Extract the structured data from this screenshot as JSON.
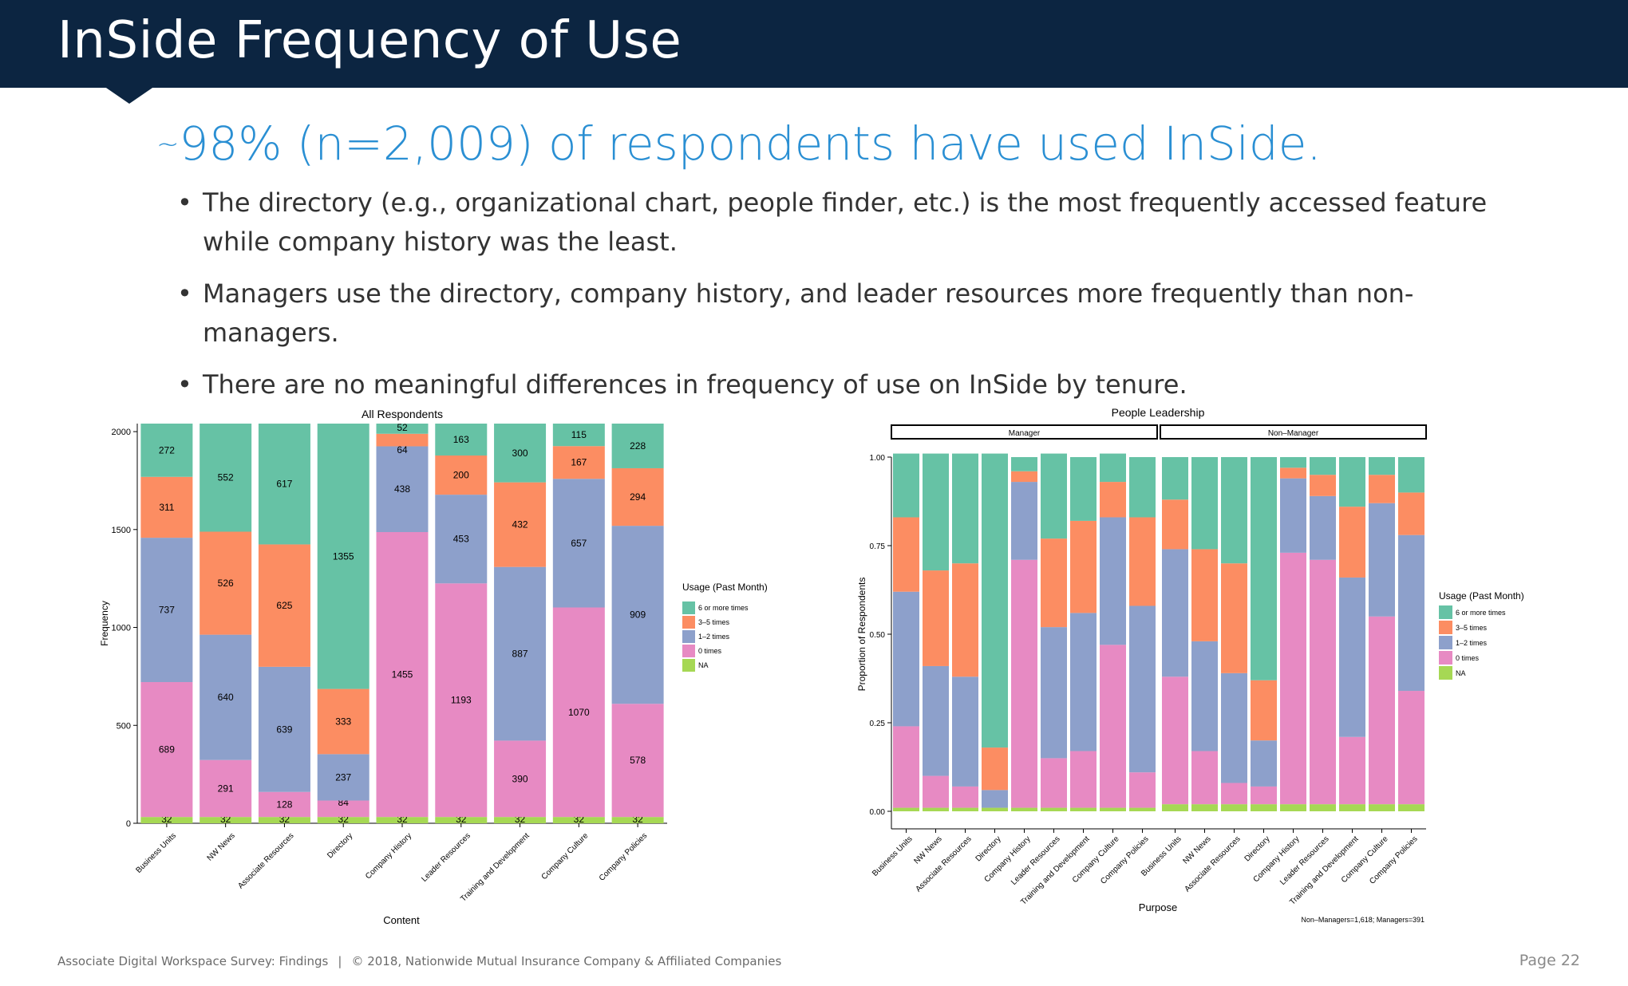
{
  "slide": {
    "title": "InSide Frequency of Use",
    "subtitle_prefix": "~",
    "subtitle": "98% (n=2,009) of respondents have used InSide.",
    "bullets": [
      "The directory (e.g., organizational chart, people finder, etc.) is the most frequently accessed feature while company history was the least.",
      "Managers use the directory, company history, and leader resources more frequently than non-managers.",
      "There are no meaningful differences in frequency of use on InSide by tenure."
    ],
    "footer": "Associate Digital Workspace Survey: Findings",
    "footer_sep": "|",
    "copyright": "© 2018, Nationwide Mutual Insurance Company & Affiliated Companies",
    "page": "Page 22"
  },
  "colors": {
    "six_plus": "#66c2a5",
    "three_five": "#fc8d62",
    "one_two": "#8da0cb",
    "zero": "#e78ac3",
    "na": "#a6d854",
    "header_bg": "#0c2541",
    "subtitle": "#2a8fd3"
  },
  "chart_data": [
    {
      "type": "bar",
      "stacked": true,
      "title": "All Respondents",
      "xlabel": "Content",
      "ylabel": "Frequency",
      "ylim": [
        0,
        2041
      ],
      "yticks": [
        0,
        500,
        1000,
        1500,
        2000
      ],
      "categories": [
        "Business Units",
        "NW News",
        "Associate Resources",
        "Directory",
        "Company History",
        "Leader Resources",
        "Training and Development",
        "Company Culture",
        "Company Policies"
      ],
      "legend_title": "Usage (Past Month)",
      "legend_position": "right",
      "series": [
        {
          "name": "NA",
          "key": "na",
          "values": [
            32,
            32,
            32,
            32,
            32,
            32,
            32,
            32,
            32
          ]
        },
        {
          "name": "0 times",
          "key": "zero",
          "values": [
            689,
            291,
            128,
            84,
            1455,
            1193,
            390,
            1070,
            578
          ]
        },
        {
          "name": "1–2 times",
          "key": "one_two",
          "values": [
            737,
            640,
            639,
            237,
            438,
            453,
            887,
            657,
            909
          ]
        },
        {
          "name": "3–5 times",
          "key": "three_five",
          "values": [
            311,
            526,
            625,
            333,
            64,
            200,
            432,
            167,
            294
          ]
        },
        {
          "name": "6 or more times",
          "key": "six_plus",
          "values": [
            272,
            552,
            617,
            1355,
            52,
            163,
            300,
            115,
            228
          ]
        }
      ]
    },
    {
      "type": "bar",
      "stacked": true,
      "title": "People Leadership",
      "xlabel": "Purpose",
      "ylabel": "Proportion of Respondents",
      "ylim": [
        0,
        1
      ],
      "yticks": [
        "0.00",
        "0.25",
        "0.50",
        "0.75",
        "1.00"
      ],
      "facets": [
        "Manager",
        "Non–Manager"
      ],
      "categories": [
        "Business Units",
        "NW News",
        "Associate Resources",
        "Directory",
        "Company History",
        "Leader Resources",
        "Training and Development",
        "Company Culture",
        "Company Policies"
      ],
      "legend_title": "Usage (Past Month)",
      "legend_position": "right",
      "note": "Non–Managers=1,618; Managers=391",
      "manager": {
        "na": [
          0.01,
          0.01,
          0.01,
          0.01,
          0.01,
          0.01,
          0.01,
          0.01,
          0.01
        ],
        "zero": [
          0.23,
          0.09,
          0.06,
          0.0,
          0.7,
          0.14,
          0.16,
          0.46,
          0.1
        ],
        "one_two": [
          0.38,
          0.31,
          0.31,
          0.05,
          0.22,
          0.37,
          0.39,
          0.36,
          0.47
        ],
        "three_five": [
          0.21,
          0.27,
          0.32,
          0.12,
          0.03,
          0.25,
          0.26,
          0.1,
          0.25
        ],
        "six_plus": [
          0.18,
          0.33,
          0.31,
          0.83,
          0.04,
          0.24,
          0.18,
          0.08,
          0.17
        ]
      },
      "non_manager": {
        "na": [
          0.02,
          0.02,
          0.02,
          0.02,
          0.02,
          0.02,
          0.02,
          0.02,
          0.02
        ],
        "zero": [
          0.36,
          0.15,
          0.06,
          0.05,
          0.71,
          0.69,
          0.19,
          0.53,
          0.32
        ],
        "one_two": [
          0.36,
          0.31,
          0.31,
          0.13,
          0.21,
          0.18,
          0.45,
          0.32,
          0.44
        ],
        "three_five": [
          0.14,
          0.26,
          0.31,
          0.17,
          0.03,
          0.06,
          0.2,
          0.08,
          0.12
        ],
        "six_plus": [
          0.12,
          0.26,
          0.3,
          0.63,
          0.03,
          0.05,
          0.14,
          0.05,
          0.1
        ]
      }
    }
  ]
}
